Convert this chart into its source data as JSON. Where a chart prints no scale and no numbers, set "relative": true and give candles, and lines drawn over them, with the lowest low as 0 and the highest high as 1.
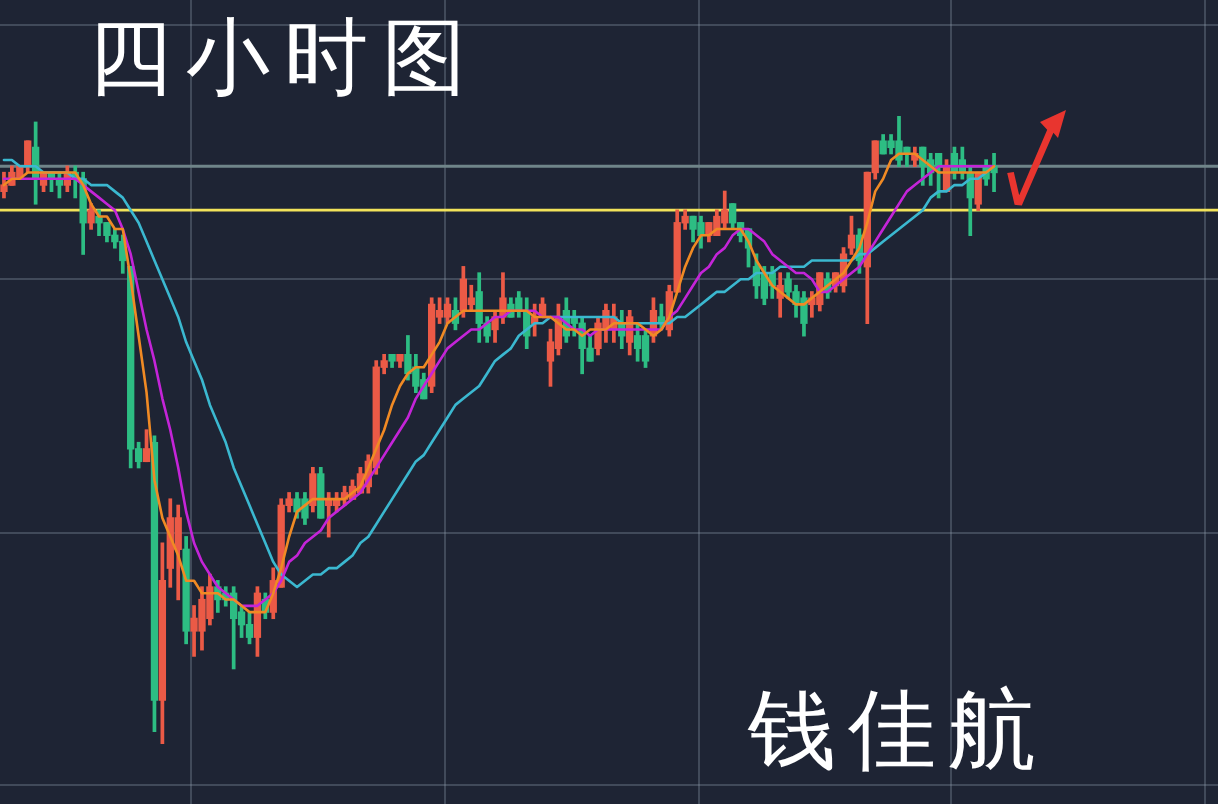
{
  "chart_data": {
    "type": "candlestick",
    "title": "四小时图",
    "annotations": [
      "钱佳航"
    ],
    "relative": true,
    "grid": true,
    "legend": false,
    "marker": "none",
    "categories": [
      null,
      null,
      null,
      null,
      null,
      null,
      null,
      null,
      null,
      null,
      null,
      null,
      null,
      null,
      null,
      null,
      null,
      null,
      null,
      null,
      null,
      null,
      null,
      null,
      null,
      null,
      null,
      null,
      null,
      null,
      null,
      null,
      null,
      null,
      null,
      null,
      null,
      null,
      null,
      null,
      null,
      null,
      null,
      null,
      null,
      null,
      null,
      null,
      null,
      null,
      null,
      null,
      null,
      null,
      null,
      null,
      null,
      null,
      null,
      null,
      null,
      null,
      null,
      null,
      null,
      null,
      null,
      null,
      null,
      null,
      null,
      null,
      null,
      null,
      null,
      null,
      null,
      null,
      null,
      null,
      null,
      null,
      null,
      null,
      null,
      null,
      null,
      null,
      null,
      null,
      null,
      null,
      null,
      null,
      null,
      null,
      null,
      null,
      null,
      null,
      null,
      null,
      null,
      null,
      null,
      null,
      null,
      null,
      null,
      null,
      null,
      null,
      null,
      null,
      null,
      null,
      null,
      null,
      null,
      null,
      null,
      null,
      null,
      null,
      null,
      null
    ],
    "series": [
      {
        "ohlc": [
          [
            0.88,
            0.91,
            0.87,
            0.89
          ],
          [
            0.89,
            0.92,
            0.89,
            0.91
          ],
          [
            0.9,
            0.92,
            0.9,
            0.92
          ],
          [
            0.92,
            0.96,
            0.91,
            0.96
          ],
          [
            0.95,
            0.99,
            0.86,
            0.9
          ],
          [
            0.89,
            0.91,
            0.88,
            0.91
          ],
          [
            0.91,
            0.91,
            0.88,
            0.9
          ],
          [
            0.9,
            0.91,
            0.87,
            0.89
          ],
          [
            0.89,
            0.92,
            0.88,
            0.91
          ],
          [
            0.91,
            0.92,
            0.87,
            0.9
          ],
          [
            0.9,
            0.91,
            0.78,
            0.83
          ],
          [
            0.83,
            0.86,
            0.82,
            0.85
          ],
          [
            0.84,
            0.85,
            0.81,
            0.83
          ],
          [
            0.83,
            0.83,
            0.8,
            0.81
          ],
          [
            0.81,
            0.82,
            0.79,
            0.8
          ],
          [
            0.8,
            0.81,
            0.75,
            0.77
          ],
          [
            0.76,
            0.76,
            0.44,
            0.47
          ],
          [
            0.47,
            0.48,
            0.44,
            0.45
          ],
          [
            0.45,
            0.5,
            0.45,
            0.47
          ],
          [
            0.48,
            0.49,
            0.02,
            0.07
          ],
          [
            0.07,
            0.32,
            0.0,
            0.26
          ],
          [
            0.28,
            0.39,
            0.25,
            0.36
          ],
          [
            0.31,
            0.38,
            0.23,
            0.36
          ],
          [
            0.31,
            0.33,
            0.16,
            0.18
          ],
          [
            0.18,
            0.22,
            0.14,
            0.2
          ],
          [
            0.18,
            0.25,
            0.15,
            0.23
          ],
          [
            0.2,
            0.27,
            0.19,
            0.25
          ],
          [
            0.25,
            0.26,
            0.21,
            0.23
          ],
          [
            0.24,
            0.25,
            0.22,
            0.23
          ],
          [
            0.24,
            0.25,
            0.12,
            0.2
          ],
          [
            0.21,
            0.22,
            0.17,
            0.19
          ],
          [
            0.19,
            0.21,
            0.16,
            0.17
          ],
          [
            0.17,
            0.25,
            0.14,
            0.24
          ],
          [
            0.23,
            0.24,
            0.2,
            0.21
          ],
          [
            0.21,
            0.28,
            0.2,
            0.26
          ],
          [
            0.25,
            0.39,
            0.25,
            0.38
          ],
          [
            0.38,
            0.4,
            0.37,
            0.39
          ],
          [
            0.39,
            0.4,
            0.36,
            0.37
          ],
          [
            0.39,
            0.4,
            0.35,
            0.36
          ],
          [
            0.38,
            0.44,
            0.37,
            0.43
          ],
          [
            0.43,
            0.44,
            0.36,
            0.36
          ],
          [
            0.38,
            0.4,
            0.33,
            0.39
          ],
          [
            0.38,
            0.4,
            0.37,
            0.39
          ],
          [
            0.39,
            0.41,
            0.38,
            0.4
          ],
          [
            0.39,
            0.42,
            0.39,
            0.41
          ],
          [
            0.4,
            0.44,
            0.4,
            0.43
          ],
          [
            0.41,
            0.46,
            0.4,
            0.45
          ],
          [
            0.44,
            0.61,
            0.43,
            0.6
          ],
          [
            0.6,
            0.62,
            0.59,
            0.61
          ],
          [
            0.62,
            0.62,
            0.6,
            0.61
          ],
          [
            0.61,
            0.62,
            0.6,
            0.62
          ],
          [
            0.62,
            0.65,
            0.58,
            0.59
          ],
          [
            0.6,
            0.62,
            0.56,
            0.57
          ],
          [
            0.58,
            0.59,
            0.55,
            0.55
          ],
          [
            0.57,
            0.71,
            0.56,
            0.7
          ],
          [
            0.68,
            0.71,
            0.67,
            0.69
          ],
          [
            0.68,
            0.71,
            0.67,
            0.7
          ],
          [
            0.69,
            0.71,
            0.66,
            0.67
          ],
          [
            0.69,
            0.76,
            0.68,
            0.74
          ],
          [
            0.7,
            0.73,
            0.69,
            0.71
          ],
          [
            0.72,
            0.75,
            0.64,
            0.67
          ],
          [
            0.67,
            0.68,
            0.64,
            0.65
          ],
          [
            0.66,
            0.69,
            0.64,
            0.68
          ],
          [
            0.68,
            0.75,
            0.67,
            0.71
          ],
          [
            0.7,
            0.71,
            0.68,
            0.68
          ],
          [
            0.71,
            0.72,
            0.68,
            0.69
          ],
          [
            0.69,
            0.71,
            0.63,
            0.65
          ],
          [
            0.67,
            0.7,
            0.65,
            0.68
          ],
          [
            0.68,
            0.71,
            0.68,
            0.7
          ],
          [
            0.61,
            0.66,
            0.57,
            0.64
          ],
          [
            0.63,
            0.7,
            0.62,
            0.68
          ],
          [
            0.69,
            0.71,
            0.64,
            0.65
          ],
          [
            0.68,
            0.69,
            0.65,
            0.67
          ],
          [
            0.67,
            0.68,
            0.59,
            0.63
          ],
          [
            0.63,
            0.65,
            0.61,
            0.61
          ],
          [
            0.63,
            0.68,
            0.62,
            0.67
          ],
          [
            0.66,
            0.7,
            0.64,
            0.69
          ],
          [
            0.66,
            0.7,
            0.64,
            0.68
          ],
          [
            0.67,
            0.69,
            0.63,
            0.65
          ],
          [
            0.64,
            0.69,
            0.62,
            0.68
          ],
          [
            0.65,
            0.67,
            0.61,
            0.63
          ],
          [
            0.65,
            0.66,
            0.6,
            0.61
          ],
          [
            0.65,
            0.71,
            0.64,
            0.69
          ],
          [
            0.68,
            0.7,
            0.66,
            0.67
          ],
          [
            0.66,
            0.73,
            0.65,
            0.72
          ],
          [
            0.72,
            0.85,
            0.72,
            0.83
          ],
          [
            0.83,
            0.85,
            0.82,
            0.84
          ],
          [
            0.84,
            0.84,
            0.8,
            0.82
          ],
          [
            0.83,
            0.84,
            0.79,
            0.81
          ],
          [
            0.81,
            0.83,
            0.8,
            0.83
          ],
          [
            0.81,
            0.85,
            0.81,
            0.84
          ],
          [
            0.83,
            0.88,
            0.82,
            0.85
          ],
          [
            0.86,
            0.86,
            0.82,
            0.83
          ],
          [
            0.83,
            0.83,
            0.8,
            0.81
          ],
          [
            0.82,
            0.82,
            0.76,
            0.79
          ],
          [
            0.76,
            0.78,
            0.71,
            0.73
          ],
          [
            0.75,
            0.76,
            0.7,
            0.71
          ],
          [
            0.75,
            0.76,
            0.71,
            0.73
          ],
          [
            0.71,
            0.75,
            0.68,
            0.73
          ],
          [
            0.74,
            0.75,
            0.71,
            0.72
          ],
          [
            0.72,
            0.73,
            0.68,
            0.7
          ],
          [
            0.71,
            0.72,
            0.65,
            0.67
          ],
          [
            0.7,
            0.72,
            0.68,
            0.71
          ],
          [
            0.7,
            0.75,
            0.69,
            0.75
          ],
          [
            0.74,
            0.75,
            0.71,
            0.72
          ],
          [
            0.73,
            0.75,
            0.72,
            0.75
          ],
          [
            0.73,
            0.79,
            0.72,
            0.78
          ],
          [
            0.79,
            0.84,
            0.78,
            0.81
          ],
          [
            0.81,
            0.82,
            0.75,
            0.77
          ],
          [
            0.76,
            0.91,
            0.67,
            0.91
          ],
          [
            0.91,
            0.96,
            0.9,
            0.96
          ],
          [
            0.96,
            0.97,
            0.94,
            0.94
          ],
          [
            0.96,
            0.97,
            0.94,
            0.95
          ],
          [
            0.96,
            1.0,
            0.92,
            0.93
          ],
          [
            0.95,
            0.95,
            0.92,
            0.94
          ],
          [
            0.93,
            0.95,
            0.92,
            0.94
          ],
          [
            0.95,
            0.95,
            0.89,
            0.92
          ],
          [
            0.93,
            0.94,
            0.89,
            0.91
          ],
          [
            0.94,
            0.94,
            0.87,
            0.92
          ],
          [
            0.88,
            0.93,
            0.88,
            0.92
          ],
          [
            0.94,
            0.95,
            0.9,
            0.91
          ],
          [
            0.93,
            0.95,
            0.9,
            0.91
          ],
          [
            0.91,
            0.92,
            0.81,
            0.87
          ],
          [
            0.86,
            0.91,
            0.85,
            0.91
          ],
          [
            0.92,
            0.93,
            0.89,
            0.9
          ],
          [
            0.92,
            0.94,
            0.88,
            0.91
          ]
        ],
        "colors": [
          "#eb5a46",
          "#eb5a46",
          "#eb5a46",
          "#eb5a46",
          "#2dbd83",
          "#eb5a46",
          "#2dbd83",
          "#2dbd83",
          "#eb5a46",
          "#2dbd83",
          "#2dbd83",
          "#eb5a46",
          "#2dbd83",
          "#2dbd83",
          "#2dbd83",
          "#2dbd83",
          "#2dbd83",
          "#2dbd83",
          "#eb5a46",
          "#2dbd83",
          "#eb5a46",
          "#eb5a46",
          "#eb5a46",
          "#2dbd83",
          "#eb5a46",
          "#eb5a46",
          "#eb5a46",
          "#2dbd83",
          "#2dbd83",
          "#2dbd83",
          "#2dbd83",
          "#2dbd83",
          "#eb5a46",
          "#2dbd83",
          "#eb5a46",
          "#eb5a46",
          "#eb5a46",
          "#2dbd83",
          "#2dbd83",
          "#eb5a46",
          "#2dbd83",
          "#eb5a46",
          "#eb5a46",
          "#eb5a46",
          "#eb5a46",
          "#eb5a46",
          "#eb5a46",
          "#eb5a46",
          "#eb5a46",
          "#2dbd83",
          "#eb5a46",
          "#2dbd83",
          "#2dbd83",
          "#2dbd83",
          "#eb5a46",
          "#eb5a46",
          "#eb5a46",
          "#2dbd83",
          "#eb5a46",
          "#eb5a46",
          "#2dbd83",
          "#2dbd83",
          "#eb5a46",
          "#eb5a46",
          "#2dbd83",
          "#2dbd83",
          "#2dbd83",
          "#eb5a46",
          "#eb5a46",
          "#eb5a46",
          "#eb5a46",
          "#2dbd83",
          "#2dbd83",
          "#2dbd83",
          "#2dbd83",
          "#eb5a46",
          "#eb5a46",
          "#eb5a46",
          "#2dbd83",
          "#eb5a46",
          "#2dbd83",
          "#2dbd83",
          "#eb5a46",
          "#2dbd83",
          "#eb5a46",
          "#eb5a46",
          "#eb5a46",
          "#2dbd83",
          "#2dbd83",
          "#eb5a46",
          "#eb5a46",
          "#eb5a46",
          "#2dbd83",
          "#2dbd83",
          "#2dbd83",
          "#2dbd83",
          "#2dbd83",
          "#2dbd83",
          "#eb5a46",
          "#2dbd83",
          "#2dbd83",
          "#2dbd83",
          "#eb5a46",
          "#eb5a46",
          "#2dbd83",
          "#eb5a46",
          "#eb5a46",
          "#eb5a46",
          "#2dbd83",
          "#eb5a46",
          "#eb5a46",
          "#2dbd83",
          "#2dbd83",
          "#2dbd83",
          "#2dbd83",
          "#eb5a46",
          "#2dbd83",
          "#2dbd83",
          "#2dbd83",
          "#eb5a46",
          "#2dbd83",
          "#2dbd83",
          "#2dbd83",
          "#eb5a46",
          "#2dbd83",
          "#2dbd83"
        ]
      },
      {
        "type": "line",
        "color": "#f08a24",
        "values": [
          0.89,
          0.9,
          0.9,
          0.91,
          0.91,
          0.91,
          0.91,
          0.91,
          0.91,
          0.91,
          0.89,
          0.86,
          0.84,
          0.84,
          0.82,
          0.82,
          0.74,
          0.65,
          0.56,
          0.42,
          0.36,
          0.33,
          0.3,
          0.26,
          0.26,
          0.24,
          0.24,
          0.24,
          0.23,
          0.23,
          0.22,
          0.21,
          0.21,
          0.21,
          0.24,
          0.28,
          0.33,
          0.37,
          0.38,
          0.39,
          0.39,
          0.39,
          0.39,
          0.39,
          0.4,
          0.41,
          0.44,
          0.47,
          0.5,
          0.54,
          0.57,
          0.59,
          0.6,
          0.6,
          0.62,
          0.64,
          0.67,
          0.68,
          0.69,
          0.69,
          0.69,
          0.69,
          0.69,
          0.69,
          0.69,
          0.69,
          0.69,
          0.68,
          0.68,
          0.68,
          0.67,
          0.66,
          0.66,
          0.65,
          0.66,
          0.66,
          0.66,
          0.67,
          0.67,
          0.67,
          0.67,
          0.66,
          0.65,
          0.66,
          0.68,
          0.72,
          0.76,
          0.79,
          0.81,
          0.81,
          0.82,
          0.82,
          0.82,
          0.82,
          0.8,
          0.77,
          0.75,
          0.73,
          0.72,
          0.71,
          0.7,
          0.7,
          0.71,
          0.72,
          0.73,
          0.74,
          0.75,
          0.77,
          0.79,
          0.83,
          0.88,
          0.9,
          0.93,
          0.94,
          0.94,
          0.94,
          0.93,
          0.92,
          0.91,
          0.91,
          0.91,
          0.91,
          0.91,
          0.91,
          0.91,
          0.92
        ]
      },
      {
        "type": "line",
        "color": "#c424d8",
        "values": [
          0.9,
          0.9,
          0.9,
          0.9,
          0.9,
          0.9,
          0.9,
          0.9,
          0.9,
          0.9,
          0.89,
          0.88,
          0.87,
          0.86,
          0.85,
          0.82,
          0.78,
          0.72,
          0.66,
          0.61,
          0.55,
          0.5,
          0.44,
          0.37,
          0.32,
          0.29,
          0.27,
          0.25,
          0.24,
          0.23,
          0.22,
          0.22,
          0.22,
          0.23,
          0.24,
          0.26,
          0.29,
          0.3,
          0.32,
          0.33,
          0.34,
          0.36,
          0.37,
          0.38,
          0.39,
          0.4,
          0.42,
          0.44,
          0.46,
          0.48,
          0.5,
          0.52,
          0.55,
          0.57,
          0.59,
          0.61,
          0.63,
          0.64,
          0.65,
          0.66,
          0.66,
          0.67,
          0.68,
          0.68,
          0.69,
          0.69,
          0.69,
          0.69,
          0.68,
          0.68,
          0.68,
          0.67,
          0.66,
          0.66,
          0.65,
          0.66,
          0.66,
          0.66,
          0.66,
          0.66,
          0.66,
          0.66,
          0.66,
          0.66,
          0.68,
          0.69,
          0.71,
          0.73,
          0.75,
          0.76,
          0.78,
          0.79,
          0.81,
          0.82,
          0.82,
          0.81,
          0.8,
          0.78,
          0.77,
          0.76,
          0.75,
          0.75,
          0.74,
          0.72,
          0.72,
          0.73,
          0.74,
          0.75,
          0.76,
          0.78,
          0.8,
          0.82,
          0.84,
          0.86,
          0.88,
          0.89,
          0.9,
          0.91,
          0.92,
          0.92,
          0.92,
          0.92,
          0.92,
          0.92,
          0.92,
          0.92
        ]
      },
      {
        "type": "line",
        "color": "#3bb8d0",
        "values": [
          0.93,
          0.93,
          0.92,
          0.92,
          0.92,
          0.91,
          0.91,
          0.91,
          0.91,
          0.9,
          0.9,
          0.89,
          0.89,
          0.89,
          0.88,
          0.87,
          0.85,
          0.83,
          0.8,
          0.77,
          0.74,
          0.71,
          0.68,
          0.64,
          0.61,
          0.58,
          0.54,
          0.51,
          0.48,
          0.44,
          0.41,
          0.38,
          0.35,
          0.32,
          0.29,
          0.27,
          0.26,
          0.25,
          0.26,
          0.27,
          0.27,
          0.28,
          0.28,
          0.29,
          0.3,
          0.32,
          0.33,
          0.35,
          0.37,
          0.39,
          0.41,
          0.43,
          0.45,
          0.46,
          0.48,
          0.5,
          0.52,
          0.54,
          0.55,
          0.56,
          0.57,
          0.59,
          0.61,
          0.62,
          0.63,
          0.65,
          0.66,
          0.67,
          0.67,
          0.68,
          0.68,
          0.68,
          0.68,
          0.68,
          0.68,
          0.68,
          0.68,
          0.68,
          0.67,
          0.67,
          0.67,
          0.67,
          0.67,
          0.67,
          0.67,
          0.68,
          0.68,
          0.69,
          0.7,
          0.71,
          0.72,
          0.72,
          0.73,
          0.74,
          0.74,
          0.75,
          0.75,
          0.75,
          0.76,
          0.76,
          0.76,
          0.76,
          0.77,
          0.77,
          0.77,
          0.77,
          0.77,
          0.77,
          0.78,
          0.78,
          0.79,
          0.8,
          0.81,
          0.82,
          0.83,
          0.84,
          0.85,
          0.87,
          0.88,
          0.88,
          0.89,
          0.89,
          0.9,
          0.9,
          0.91,
          0.92
        ]
      }
    ],
    "ref_lines": [
      {
        "axis": "y",
        "value": 0.85,
        "color": "#f2e35a"
      },
      {
        "axis": "y",
        "value": 0.92,
        "color": "#6f8489"
      }
    ]
  }
}
